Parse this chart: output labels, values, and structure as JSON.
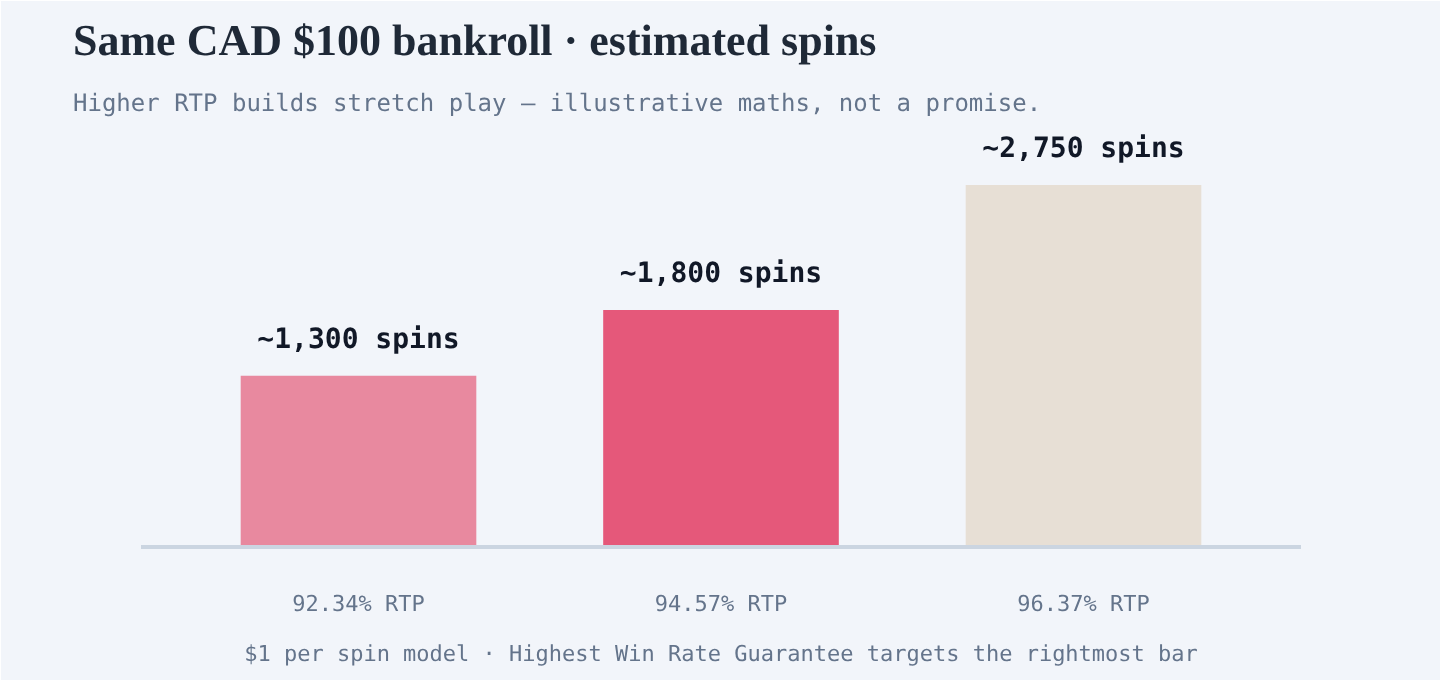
{
  "chart_data": {
    "type": "bar",
    "title": "Same CAD $100 bankroll · estimated spins",
    "subtitle": "Higher RTP builds stretch play — illustrative maths, not a promise.",
    "categories": [
      "92.34% RTP",
      "94.57% RTP",
      "96.37% RTP"
    ],
    "values": [
      1300,
      1800,
      2750
    ],
    "colors": [
      "#e8899f",
      "#e5587a",
      "#e7dfd5"
    ],
    "value_labels": [
      "~1,300 spins",
      "~1,800 spins",
      "~2,750 spins"
    ],
    "annotations": [
      "$1 per spin model · Highest Win Rate Guarantee targets the rightmost bar"
    ],
    "grid": false
  }
}
